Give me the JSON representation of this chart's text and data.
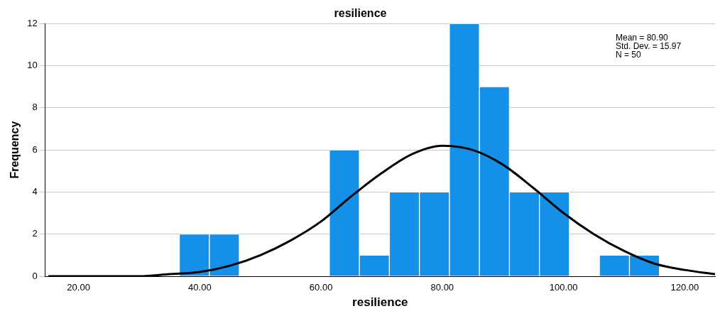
{
  "chart_data": {
    "type": "histogram",
    "title": "resilience",
    "xlabel": "resilience",
    "ylabel": "Frequency",
    "bins": [
      36.6,
      41.6,
      46.5,
      51.5,
      56.4,
      61.4,
      66.3,
      71.3,
      76.2,
      81.2,
      86.1,
      91.1,
      96.0,
      101.0,
      105.9,
      110.9,
      115.8
    ],
    "values": [
      2,
      2,
      0,
      0,
      0,
      6,
      1,
      4,
      4,
      12,
      9,
      4,
      4,
      0,
      1,
      1
    ],
    "color": "#1590e8",
    "series": [
      {
        "name": null,
        "type": "line",
        "color": "#000000",
        "x": [
          15,
          20,
          25,
          30,
          35,
          40,
          45,
          50,
          55,
          60,
          65,
          70,
          75,
          80,
          85,
          90,
          95,
          100,
          105,
          110,
          115,
          120,
          125
        ],
        "values": [
          0,
          0,
          0,
          0,
          0.1,
          0.2,
          0.5,
          1,
          1.7,
          2.6,
          3.8,
          4.9,
          5.8,
          6.2,
          6,
          5.3,
          4.2,
          3,
          2,
          1.2,
          0.6,
          0.3,
          0.1
        ]
      }
    ],
    "xlim": [
      14.5,
      125
    ],
    "xticks": [
      {
        "value": 20,
        "label": "20.00"
      },
      {
        "value": 40,
        "label": "40.00"
      },
      {
        "value": 60,
        "label": "60.00"
      },
      {
        "value": 80,
        "label": "80.00"
      },
      {
        "value": 100,
        "label": "100.00"
      },
      {
        "value": 120,
        "label": "120.00"
      }
    ],
    "ylim": [
      0,
      12
    ],
    "yticks": [
      0,
      2,
      4,
      6,
      8,
      10,
      12
    ],
    "grid": "y",
    "legend": false,
    "annotations": [
      "Mean = 80.90",
      "Std. Dev. = 15.97",
      "N = 50"
    ]
  }
}
